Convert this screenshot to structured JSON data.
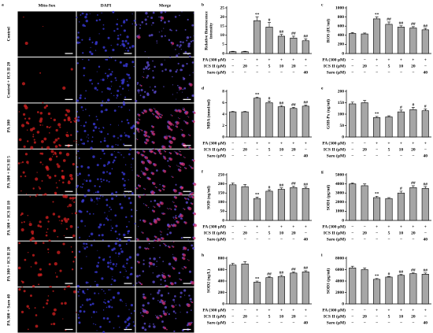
{
  "panel_a": {
    "letter": "a",
    "columns": [
      "Mito-Sox",
      "DAPI",
      "Merge"
    ],
    "rows": [
      "Control",
      "Control + ICS II 20",
      "PA 300",
      "PA 300 + ICS II 5",
      "PA 300 + ICS II 10",
      "PA 300 + ICS II 20",
      "PA 300 + Saro 40"
    ]
  },
  "chart_data": [
    {
      "type": "bar",
      "letter": "b",
      "ylabel": [
        "Relative fluorescence",
        "intensity"
      ],
      "values": [
        1,
        1,
        18,
        14.5,
        9.5,
        8.5,
        7
      ],
      "errors": [
        0.2,
        0.2,
        2,
        2.5,
        1,
        1,
        1
      ],
      "annotations": [
        null,
        null,
        "**",
        "#",
        "##",
        "##",
        "##"
      ],
      "ylim": [
        0,
        25
      ],
      "yticks": [
        0,
        5,
        10,
        15,
        20,
        25
      ],
      "color": "#a6a6a6",
      "table": [
        {
          "label": "PA (300 μM)",
          "cells": [
            "−",
            "−",
            "+",
            "+",
            "+",
            "+",
            "+"
          ]
        },
        {
          "label": "ICS II (μM)",
          "cells": [
            "−",
            20,
            "−",
            5,
            10,
            20,
            "−"
          ]
        },
        {
          "label": "Saro (μM)",
          "cells": [
            "−",
            "−",
            "−",
            "−",
            "−",
            "−",
            40
          ]
        }
      ]
    },
    {
      "type": "bar",
      "letter": "c",
      "ylabel": "ROS (IU/ml)",
      "values": [
        440,
        430,
        760,
        640,
        580,
        560,
        520
      ],
      "errors": [
        20,
        20,
        40,
        50,
        30,
        30,
        30
      ],
      "annotations": [
        null,
        null,
        "**",
        "##",
        "##",
        "##",
        "##"
      ],
      "ylim": [
        0,
        1000
      ],
      "yticks": [
        0,
        200,
        400,
        600,
        800,
        1000
      ],
      "color": "#a6a6a6",
      "table": [
        {
          "label": "PA (300 μM)",
          "cells": [
            "−",
            "−",
            "+",
            "+",
            "+",
            "+",
            "+"
          ]
        },
        {
          "label": "ICS II (μM)",
          "cells": [
            "−",
            20,
            "−",
            5,
            10,
            20,
            "−"
          ]
        },
        {
          "label": "Saro (μM)",
          "cells": [
            "−",
            "−",
            "−",
            "−",
            "−",
            "−",
            40
          ]
        }
      ]
    },
    {
      "type": "bar",
      "letter": "d",
      "ylabel": "MDA (nmol/ml)",
      "values": [
        4.4,
        4.4,
        6.8,
        6.0,
        5.3,
        5.0,
        5.4
      ],
      "errors": [
        0.1,
        0.1,
        0.2,
        0.3,
        0.2,
        0.2,
        0.2
      ],
      "annotations": [
        null,
        null,
        "**",
        "#",
        "##",
        "##",
        "##"
      ],
      "ylim": [
        0,
        8
      ],
      "yticks": [
        0,
        2,
        4,
        6,
        8
      ],
      "color": "#a6a6a6",
      "table": [
        {
          "label": "PA (300 μM)",
          "cells": [
            "−",
            "−",
            "+",
            "+",
            "+",
            "+",
            "+"
          ]
        },
        {
          "label": "ICS II (μM)",
          "cells": [
            "−",
            20,
            "−",
            5,
            10,
            20,
            "−"
          ]
        },
        {
          "label": "Saro (μM)",
          "cells": [
            "−",
            "−",
            "−",
            "−",
            "−",
            "−",
            40
          ]
        }
      ]
    },
    {
      "type": "bar",
      "letter": "e",
      "ylabel": "GSH-Px (ng/ml)",
      "values": [
        145,
        150,
        85,
        88,
        110,
        120,
        115
      ],
      "errors": [
        8,
        10,
        5,
        5,
        8,
        10,
        8
      ],
      "annotations": [
        null,
        null,
        "**",
        null,
        "#",
        "#",
        "#"
      ],
      "ylim": [
        0,
        200
      ],
      "yticks": [
        0,
        50,
        100,
        150,
        200
      ],
      "color": "#a6a6a6",
      "table": [
        {
          "label": "PA (300 μM)",
          "cells": [
            "−",
            "−",
            "+",
            "+",
            "+",
            "+",
            "+"
          ]
        },
        {
          "label": "ICS II (μM)",
          "cells": [
            "−",
            20,
            "−",
            5,
            10,
            20,
            "−"
          ]
        },
        {
          "label": "Saro (μM)",
          "cells": [
            "−",
            "−",
            "−",
            "−",
            "−",
            "−",
            40
          ]
        }
      ]
    },
    {
      "type": "bar",
      "letter": "f",
      "ylabel": "SOD (ng/ml)",
      "values": [
        195,
        185,
        120,
        160,
        170,
        180,
        175
      ],
      "errors": [
        10,
        12,
        8,
        8,
        8,
        8,
        8
      ],
      "annotations": [
        null,
        null,
        "**",
        "#",
        "##",
        "##",
        "##"
      ],
      "ylim": [
        0,
        250
      ],
      "yticks": [
        0,
        50,
        100,
        150,
        200,
        250
      ],
      "color": "#a6a6a6",
      "table": [
        {
          "label": "PA (300 μM)",
          "cells": [
            "−",
            "−",
            "+",
            "+",
            "+",
            "+",
            "+"
          ]
        },
        {
          "label": "ICS II (μM)",
          "cells": [
            "−",
            20,
            "−",
            5,
            10,
            20,
            "−"
          ]
        },
        {
          "label": "Saro (μM)",
          "cells": [
            "−",
            "−",
            "−",
            "−",
            "−",
            "−",
            40
          ]
        }
      ]
    },
    {
      "type": "bar",
      "letter": "g",
      "ylabel": "SOD1 (pg/ml)",
      "values": [
        4000,
        3800,
        2500,
        2400,
        3000,
        3600,
        3500
      ],
      "errors": [
        100,
        200,
        150,
        100,
        200,
        200,
        200
      ],
      "annotations": [
        null,
        null,
        "**",
        null,
        "#",
        "##",
        "##"
      ],
      "ylim": [
        0,
        5000
      ],
      "yticks": [
        0,
        1000,
        2000,
        3000,
        4000,
        5000
      ],
      "color": "#a6a6a6",
      "table": [
        {
          "label": "PA (300 μM)",
          "cells": [
            "−",
            "−",
            "+",
            "+",
            "+",
            "+",
            "+"
          ]
        },
        {
          "label": "ICS II (μM)",
          "cells": [
            "−",
            20,
            "−",
            5,
            10,
            20,
            "−"
          ]
        },
        {
          "label": "Saro (μM)",
          "cells": [
            "−",
            "−",
            "−",
            "−",
            "−",
            "−",
            40
          ]
        }
      ]
    },
    {
      "type": "bar",
      "letter": "h",
      "ylabel": "SOD2 (ng/L)",
      "values": [
        680,
        700,
        380,
        460,
        480,
        540,
        560
      ],
      "errors": [
        30,
        40,
        20,
        20,
        20,
        20,
        20
      ],
      "annotations": [
        null,
        null,
        "**",
        "##",
        "##",
        "##",
        "##"
      ],
      "ylim": [
        0,
        800
      ],
      "yticks": [
        0,
        200,
        400,
        600,
        800
      ],
      "color": "#a6a6a6",
      "table": [
        {
          "label": "PA (300 μM)",
          "cells": [
            "−",
            "−",
            "+",
            "+",
            "+",
            "+",
            "+"
          ]
        },
        {
          "label": "ICS II (μM)",
          "cells": [
            "−",
            20,
            "−",
            5,
            10,
            20,
            "−"
          ]
        },
        {
          "label": "Saro (μM)",
          "cells": [
            "−",
            "−",
            "−",
            "−",
            "−",
            "−",
            40
          ]
        }
      ]
    },
    {
      "type": "bar",
      "letter": "i",
      "ylabel": "SOD3 (pg/ml)",
      "values": [
        6300,
        6000,
        4300,
        4700,
        5000,
        5300,
        5200
      ],
      "errors": [
        300,
        300,
        150,
        100,
        150,
        200,
        200
      ],
      "annotations": [
        null,
        null,
        "**",
        "#",
        "##",
        "##",
        "##"
      ],
      "ylim": [
        0,
        8000
      ],
      "yticks": [
        0,
        2000,
        4000,
        6000,
        8000
      ],
      "color": "#a6a6a6",
      "table": [
        {
          "label": "PA (300 μM)",
          "cells": [
            "−",
            "−",
            "+",
            "+",
            "+",
            "+",
            "+"
          ]
        },
        {
          "label": "ICS II (μM)",
          "cells": [
            "−",
            20,
            "−",
            5,
            10,
            20,
            "−"
          ]
        },
        {
          "label": "Saro (μM)",
          "cells": [
            "−",
            "−",
            "−",
            "−",
            "−",
            "−",
            40
          ]
        }
      ]
    }
  ]
}
